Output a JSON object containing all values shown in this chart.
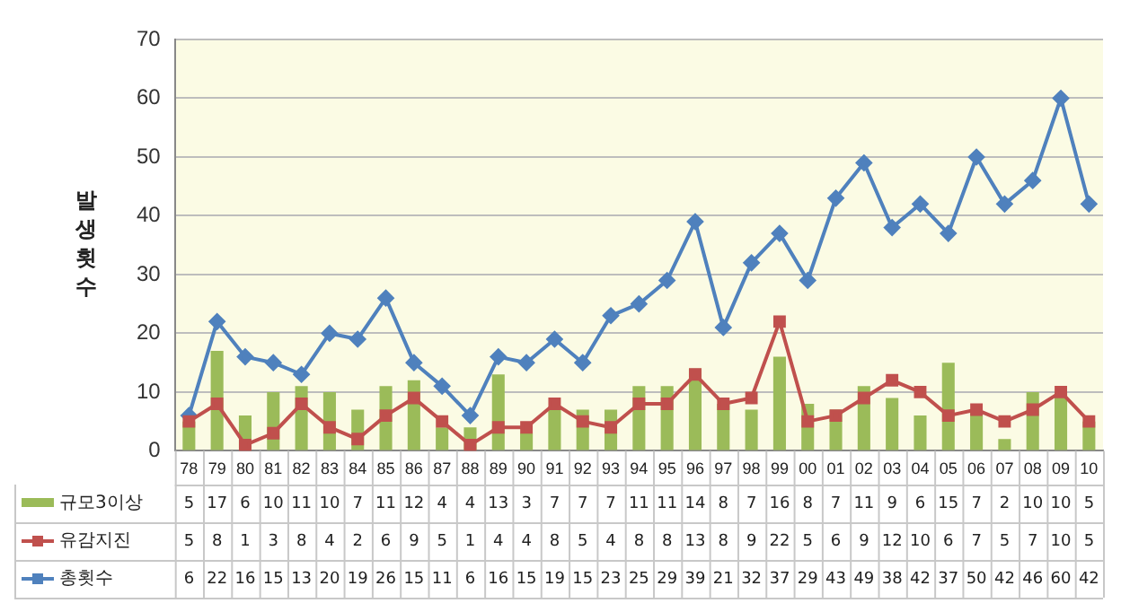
{
  "chart_data": {
    "type": "bar",
    "ylabel": "발생횟수",
    "categories": [
      "78",
      "79",
      "80",
      "81",
      "82",
      "83",
      "84",
      "85",
      "86",
      "87",
      "88",
      "89",
      "90",
      "91",
      "92",
      "93",
      "94",
      "95",
      "96",
      "97",
      "98",
      "99",
      "00",
      "01",
      "02",
      "03",
      "04",
      "05",
      "06",
      "07",
      "08",
      "09",
      "10"
    ],
    "series": [
      {
        "name": "규모3이상",
        "color": "#9bbb59",
        "values": [
          5,
          17,
          6,
          10,
          11,
          10,
          7,
          11,
          12,
          4,
          4,
          13,
          3,
          7,
          7,
          7,
          11,
          11,
          14,
          8,
          7,
          16,
          8,
          7,
          11,
          9,
          6,
          15,
          7,
          2,
          10,
          10,
          5
        ]
      },
      {
        "name": "유감지진",
        "type": "line",
        "marker": "square",
        "color": "#c0504d",
        "values": [
          5,
          8,
          1,
          3,
          8,
          4,
          2,
          6,
          9,
          5,
          1,
          4,
          4,
          8,
          5,
          4,
          8,
          8,
          13,
          8,
          9,
          22,
          5,
          6,
          9,
          12,
          10,
          6,
          7,
          5,
          7,
          10,
          5
        ]
      },
      {
        "name": "총횟수",
        "type": "line",
        "marker": "diamond",
        "color": "#4f81bd",
        "values": [
          6,
          22,
          16,
          15,
          13,
          20,
          19,
          26,
          15,
          11,
          6,
          16,
          15,
          19,
          15,
          23,
          25,
          29,
          39,
          21,
          32,
          37,
          29,
          43,
          49,
          38,
          42,
          37,
          50,
          42,
          46,
          60,
          42
        ]
      }
    ],
    "ylim": [
      0,
      70
    ],
    "yticks": [
      0,
      10,
      20,
      30,
      40,
      50,
      60,
      70
    ],
    "grid": "y",
    "legend": "bottom",
    "data_labels": true
  }
}
